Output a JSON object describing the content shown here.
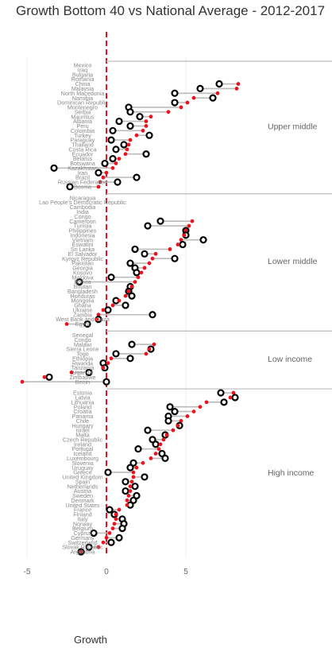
{
  "chart_data": {
    "type": "scatter",
    "title": "Growth Bottom 40 vs National Average - 2012-2017",
    "xlabel": "Growth",
    "ylabel": "",
    "xlim": [
      -6.5,
      8.7
    ],
    "x_ticks": [
      -5,
      0,
      5
    ],
    "reference_line_x": 0,
    "grid": true,
    "colors": {
      "national_average": "#000000",
      "bottom_40": "#e8141e",
      "reference_line": "#e8141e",
      "connector": "#bbbbbb",
      "group_rule": "#bdbdbd"
    },
    "series": [
      {
        "marker": "hollow-circle"
      },
      {
        "marker": "filled-dot"
      }
    ],
    "groups": [
      {
        "label": "Upper middle",
        "countries": [
          {
            "name": "Mexico",
            "avg": null,
            "b40": null
          },
          {
            "name": "Iraq",
            "avg": null,
            "b40": null
          },
          {
            "name": "Bulgaria",
            "avg": null,
            "b40": null
          },
          {
            "name": "Romania",
            "avg": null,
            "b40": null
          },
          {
            "name": "China",
            "avg": 7.1,
            "b40": 8.3
          },
          {
            "name": "Malaysia",
            "avg": 5.9,
            "b40": 8.2
          },
          {
            "name": "North Macedonia",
            "avg": 4.3,
            "b40": 7.0
          },
          {
            "name": "Namibia",
            "avg": 6.7,
            "b40": 5.5
          },
          {
            "name": "Dominican Republic",
            "avg": 4.3,
            "b40": 5.1
          },
          {
            "name": "Montenegro",
            "avg": 1.4,
            "b40": 4.7
          },
          {
            "name": "Serbia",
            "avg": 1.5,
            "b40": 3.9
          },
          {
            "name": "Mauritius",
            "avg": 2.1,
            "b40": 2.8
          },
          {
            "name": "Albania",
            "avg": 0.8,
            "b40": 2.5
          },
          {
            "name": "Peru",
            "avg": 1.5,
            "b40": 2.5
          },
          {
            "name": "Colombia",
            "avg": 0.4,
            "b40": 2.3
          },
          {
            "name": "Turkey",
            "avg": 2.7,
            "b40": 1.9
          },
          {
            "name": "Paraguay",
            "avg": 0.3,
            "b40": 1.5
          },
          {
            "name": "Thailand",
            "avg": 1.1,
            "b40": 1.4
          },
          {
            "name": "Costa Rica",
            "avg": 0.6,
            "b40": 1.3
          },
          {
            "name": "Ecuador",
            "avg": 2.5,
            "b40": 1.2
          },
          {
            "name": "Belarus",
            "avg": 0.4,
            "b40": 0.8
          },
          {
            "name": "Botswana",
            "avg": -0.1,
            "b40": 0.6
          },
          {
            "name": "Kazakhstan",
            "avg": -3.3,
            "b40": 0.4
          },
          {
            "name": "Iran",
            "avg": -0.5,
            "b40": 0.0
          },
          {
            "name": "Brazil",
            "avg": 1.9,
            "b40": -0.2
          },
          {
            "name": "Russian Federation",
            "avg": 0.7,
            "b40": -0.4
          },
          {
            "name": "Bosnia",
            "avg": -2.3,
            "b40": -0.5
          }
        ]
      },
      {
        "label": "Lower middle",
        "countries": [
          {
            "name": "Nicaragua",
            "avg": null,
            "b40": null
          },
          {
            "name": "Lao People's Democratic Republic",
            "avg": null,
            "b40": null
          },
          {
            "name": "Cambodia",
            "avg": null,
            "b40": null
          },
          {
            "name": "India",
            "avg": null,
            "b40": null
          },
          {
            "name": "Congo",
            "avg": null,
            "b40": null
          },
          {
            "name": "Cameroon",
            "avg": 3.4,
            "b40": 5.4
          },
          {
            "name": "Tunisia",
            "avg": 2.6,
            "b40": 5.2
          },
          {
            "name": "Philippines",
            "avg": 5.0,
            "b40": 5.0
          },
          {
            "name": "Indonesia",
            "avg": 5.0,
            "b40": 4.9
          },
          {
            "name": "Vietnam",
            "avg": 6.1,
            "b40": 4.7
          },
          {
            "name": "Eswatini",
            "avg": 4.8,
            "b40": 4.5
          },
          {
            "name": "Sri Lanka",
            "avg": 1.8,
            "b40": 4.0
          },
          {
            "name": "El Salvador",
            "avg": 2.4,
            "b40": 3.1
          },
          {
            "name": "Kyrgyz Republic",
            "avg": 4.3,
            "b40": 2.9
          },
          {
            "name": "Pakistan",
            "avg": 1.5,
            "b40": 2.7
          },
          {
            "name": "Georgia",
            "avg": 1.8,
            "b40": 2.4
          },
          {
            "name": "Kosovo",
            "avg": 1.9,
            "b40": 2.2
          },
          {
            "name": "Moldova",
            "avg": 0.3,
            "b40": 2.0
          },
          {
            "name": "Bolivia",
            "avg": -1.7,
            "b40": 1.8
          },
          {
            "name": "Bhutan",
            "avg": 1.5,
            "b40": 1.6
          },
          {
            "name": "Bangladesh",
            "avg": 1.4,
            "b40": 1.4
          },
          {
            "name": "Honduras",
            "avg": 1.6,
            "b40": 1.2
          },
          {
            "name": "Mongolia",
            "avg": 0.6,
            "b40": 0.8
          },
          {
            "name": "Ghana",
            "avg": 1.2,
            "b40": 0.4
          },
          {
            "name": "Ukraine",
            "avg": 0.1,
            "b40": -0.2
          },
          {
            "name": "Zambia",
            "avg": 2.9,
            "b40": -0.5
          },
          {
            "name": "West Bank and Gaza",
            "avg": -0.5,
            "b40": -0.6
          },
          {
            "name": "Egypt",
            "avg": -1.2,
            "b40": -2.5
          }
        ]
      },
      {
        "label": "Low income",
        "countries": [
          {
            "name": "Senegal",
            "avg": null,
            "b40": null
          },
          {
            "name": "Congo",
            "avg": null,
            "b40": null
          },
          {
            "name": "Malawi",
            "avg": 1.6,
            "b40": 3.0
          },
          {
            "name": "Sierra Leone",
            "avg": 2.8,
            "b40": 2.7
          },
          {
            "name": "Togo",
            "avg": 0.6,
            "b40": 2.5
          },
          {
            "name": "Ethiopia",
            "avg": 1.5,
            "b40": 0.3
          },
          {
            "name": "Rwanda",
            "avg": -0.2,
            "b40": 0.1
          },
          {
            "name": "Tanzania",
            "avg": -0.1,
            "b40": -0.2
          },
          {
            "name": "Uganda",
            "avg": -1.1,
            "b40": -2.2
          },
          {
            "name": "Zimbabwe",
            "avg": -3.6,
            "b40": -3.9
          },
          {
            "name": "Benin",
            "avg": 0.0,
            "b40": -5.3
          }
        ]
      },
      {
        "label": "High income",
        "countries": [
          {
            "name": "Estonia",
            "avg": 7.2,
            "b40": 8.0
          },
          {
            "name": "Latvia",
            "avg": 8.1,
            "b40": 7.8
          },
          {
            "name": "Lithuania",
            "avg": 7.4,
            "b40": 6.3
          },
          {
            "name": "Poland",
            "avg": 4.0,
            "b40": 5.9
          },
          {
            "name": "Croatia",
            "avg": 4.3,
            "b40": 5.5
          },
          {
            "name": "Panama",
            "avg": 3.9,
            "b40": 5.1
          },
          {
            "name": "Chile",
            "avg": 3.9,
            "b40": 4.7
          },
          {
            "name": "Hungary",
            "avg": 4.6,
            "b40": 4.5
          },
          {
            "name": "Israel",
            "avg": 2.6,
            "b40": 4.2
          },
          {
            "name": "Malta",
            "avg": 3.7,
            "b40": 3.8
          },
          {
            "name": "Czech Republic",
            "avg": 2.9,
            "b40": 3.6
          },
          {
            "name": "Ireland",
            "avg": 3.1,
            "b40": 3.4
          },
          {
            "name": "Portugal",
            "avg": 2.0,
            "b40": 3.3
          },
          {
            "name": "Iceland",
            "avg": 3.5,
            "b40": 3.1
          },
          {
            "name": "Luxembourg",
            "avg": 3.7,
            "b40": 2.8
          },
          {
            "name": "Slovenia",
            "avg": 1.7,
            "b40": 2.3
          },
          {
            "name": "Uruguay",
            "avg": 1.5,
            "b40": 1.9
          },
          {
            "name": "Greece",
            "avg": 0.1,
            "b40": 1.7
          },
          {
            "name": "United Kingdom",
            "avg": 2.4,
            "b40": 1.7
          },
          {
            "name": "Spain",
            "avg": 1.2,
            "b40": 1.6
          },
          {
            "name": "Netherlands",
            "avg": 1.8,
            "b40": 1.5
          },
          {
            "name": "Austria",
            "avg": 1.2,
            "b40": 1.5
          },
          {
            "name": "Sweden",
            "avg": 1.9,
            "b40": 1.4
          },
          {
            "name": "Denmark",
            "avg": 1.7,
            "b40": 1.3
          },
          {
            "name": "United States",
            "avg": 1.5,
            "b40": 1.3
          },
          {
            "name": "France",
            "avg": 0.2,
            "b40": 0.8
          },
          {
            "name": "Finland",
            "avg": 0.5,
            "b40": 0.6
          },
          {
            "name": "Italy",
            "avg": 1.0,
            "b40": 0.6
          },
          {
            "name": "Norway",
            "avg": 1.1,
            "b40": 0.5
          },
          {
            "name": "Belgium",
            "avg": 1.0,
            "b40": 0.4
          },
          {
            "name": "Cyprus",
            "avg": -0.8,
            "b40": 0.2
          },
          {
            "name": "Germany",
            "avg": 0.8,
            "b40": 0.0
          },
          {
            "name": "Switzerland",
            "avg": 0.3,
            "b40": -0.2
          },
          {
            "name": "Slovak Republic",
            "avg": -1.1,
            "b40": -0.5
          },
          {
            "name": "Argentina",
            "avg": -1.6,
            "b40": -1.6
          }
        ]
      }
    ]
  }
}
